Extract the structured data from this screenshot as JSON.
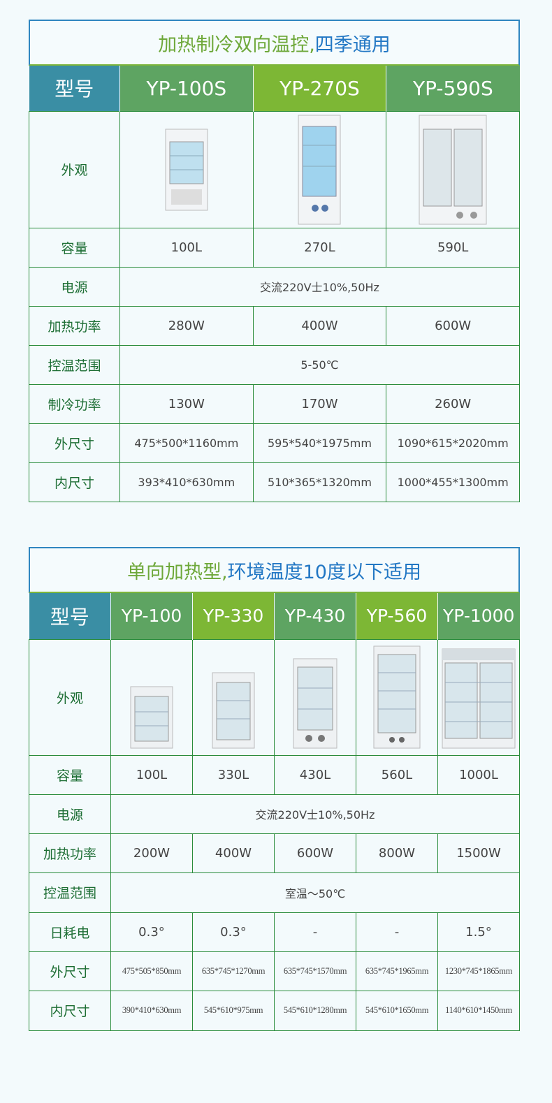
{
  "colors": {
    "header_teal": "#3a8ea4",
    "header_green": "#5ea462",
    "header_lime": "#7db735",
    "border": "#2a8c3c",
    "title_green": "#6ea83a",
    "title_blue": "#2277c4"
  },
  "table1": {
    "title_part1": "加热制冷双向温控,",
    "title_part2": "四季通用",
    "model_label": "型号",
    "models": [
      "YP-100S",
      "YP-270S",
      "YP-590S"
    ],
    "appearance_label": "外观",
    "capacity": {
      "label": "容量",
      "values": [
        "100L",
        "270L",
        "590L"
      ]
    },
    "power_supply": {
      "label": "电源",
      "value": "交流220V士10%,50Hz"
    },
    "heating_power": {
      "label": "加热功率",
      "values": [
        "280W",
        "400W",
        "600W"
      ]
    },
    "temp_range": {
      "label": "控温范围",
      "value": "5-50℃"
    },
    "cooling_power": {
      "label": "制冷功率",
      "values": [
        "130W",
        "170W",
        "260W"
      ]
    },
    "outer_size": {
      "label": "外尺寸",
      "values": [
        "475*500*1160mm",
        "595*540*1975mm",
        "1090*615*2020mm"
      ]
    },
    "inner_size": {
      "label": "内尺寸",
      "values": [
        "393*410*630mm",
        "510*365*1320mm",
        "1000*455*1300mm"
      ]
    }
  },
  "table2": {
    "title_part1": "单向加热型,",
    "title_part2": "环境温度10度以下适用",
    "model_label": "型号",
    "models": [
      "YP-100",
      "YP-330",
      "YP-430",
      "YP-560",
      "YP-1000"
    ],
    "appearance_label": "外观",
    "capacity": {
      "label": "容量",
      "values": [
        "100L",
        "330L",
        "430L",
        "560L",
        "1000L"
      ]
    },
    "power_supply": {
      "label": "电源",
      "value": "交流220V士10%,50Hz"
    },
    "heating_power": {
      "label": "加热功率",
      "values": [
        "200W",
        "400W",
        "600W",
        "800W",
        "1500W"
      ]
    },
    "temp_range": {
      "label": "控温范围",
      "value": "室温～50℃"
    },
    "daily_power": {
      "label": "日耗电",
      "values": [
        "0.3°",
        "0.3°",
        "-",
        "-",
        "1.5°"
      ]
    },
    "outer_size": {
      "label": "外尺寸",
      "values": [
        "475*505*850mm",
        "635*745*1270mm",
        "635*745*1570mm",
        "635*745*1965mm",
        "1230*745*1865mm"
      ]
    },
    "inner_size": {
      "label": "内尺寸",
      "values": [
        "390*410*630mm",
        "545*610*975mm",
        "545*610*1280mm",
        "545*610*1650mm",
        "1140*610*1450mm"
      ]
    }
  }
}
